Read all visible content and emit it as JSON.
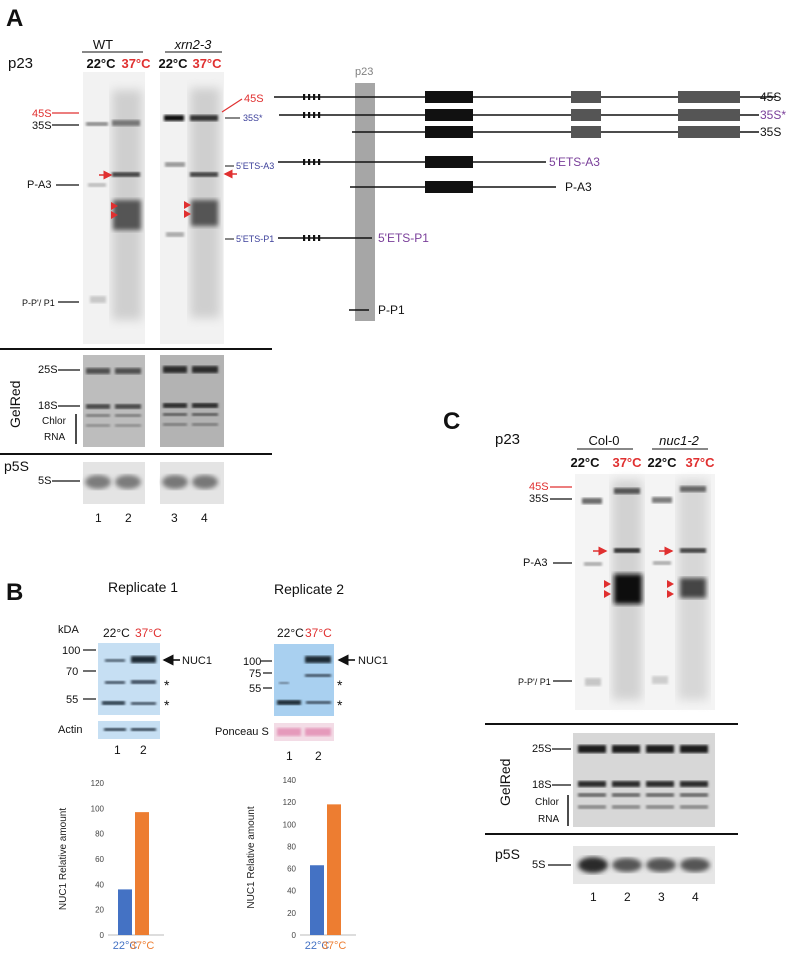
{
  "panelA": {
    "letter": "A",
    "probe": "p23",
    "genotypes": [
      "WT",
      "xrn2-3"
    ],
    "temp_cold": "22°C",
    "temp_hot": "37°C",
    "left_labels": {
      "s45": "45S",
      "s35": "35S",
      "pa3": "P-A3",
      "ppp1": "P-P'/ P1"
    },
    "right_labels": {
      "s45": "45S",
      "s35star": "35S*",
      "ets_a3": "5'ETS-A3",
      "ets_p1": "5'ETS-P1"
    },
    "gelred_label": "GelRed",
    "gelred_bands": {
      "s25": "25S",
      "s18": "18S",
      "chlor": "Chlor",
      "rna": "RNA"
    },
    "p5s_label": "p5S",
    "p5s_band": "5S",
    "lanes": [
      "1",
      "2",
      "3",
      "4"
    ],
    "map_probe": "p23",
    "map_labels": {
      "s45": "45S",
      "s35star": "35S*",
      "s35": "35S",
      "ets_a3": "5'ETS-A3",
      "pa3": "P-A3",
      "ets_p1": "5'ETS-P1",
      "pp1": "P-P1"
    }
  },
  "panelB": {
    "letter": "B",
    "rep1_title": "Replicate 1",
    "rep2_title": "Replicate 2",
    "kda": "kDA",
    "rep1_markers": [
      "100",
      "70",
      "55"
    ],
    "rep2_markers": [
      "100",
      "75",
      "55"
    ],
    "temp_cold": "22°C",
    "temp_hot": "37°C",
    "nuc1_label": "NUC1",
    "asterisk": "*",
    "actin_label": "Actin",
    "ponceau_label": "Ponceau S",
    "lanes": [
      "1",
      "2"
    ]
  },
  "panelC": {
    "letter": "C",
    "probe": "p23",
    "genotypes": [
      "Col-0",
      "nuc1-2"
    ],
    "temp_cold": "22°C",
    "temp_hot": "37°C",
    "left_labels": {
      "s45": "45S",
      "s35": "35S",
      "pa3": "P-A3",
      "ppp1": "P-P'/ P1"
    },
    "gelred_label": "GelRed",
    "gelred_bands": {
      "s25": "25S",
      "s18": "18S",
      "chlor": "Chlor",
      "rna": "RNA"
    },
    "p5s_label": "p5S",
    "p5s_band": "5S",
    "lanes": [
      "1",
      "2",
      "3",
      "4"
    ]
  },
  "colors": {
    "cold": "#4472C4",
    "hot": "#ED7D31",
    "red": "#e03030",
    "purple": "#7a3f9a",
    "blot_blue": "#c6dff3"
  },
  "chart_data": [
    {
      "type": "bar",
      "title": "",
      "xlabel": "",
      "ylabel": "NUC1 Relative amount",
      "categories": [
        "22°C",
        "37°C"
      ],
      "values": [
        36,
        97
      ],
      "ylim": [
        0,
        120
      ],
      "yticks": [
        0,
        20,
        40,
        60,
        80,
        100,
        120
      ],
      "grid": false
    },
    {
      "type": "bar",
      "title": "",
      "xlabel": "",
      "ylabel": "NUC1 Relative amount",
      "categories": [
        "22°C",
        "37°C"
      ],
      "values": [
        63,
        118
      ],
      "ylim": [
        0,
        140
      ],
      "yticks": [
        0,
        20,
        40,
        60,
        80,
        100,
        120,
        140
      ],
      "grid": false
    }
  ]
}
